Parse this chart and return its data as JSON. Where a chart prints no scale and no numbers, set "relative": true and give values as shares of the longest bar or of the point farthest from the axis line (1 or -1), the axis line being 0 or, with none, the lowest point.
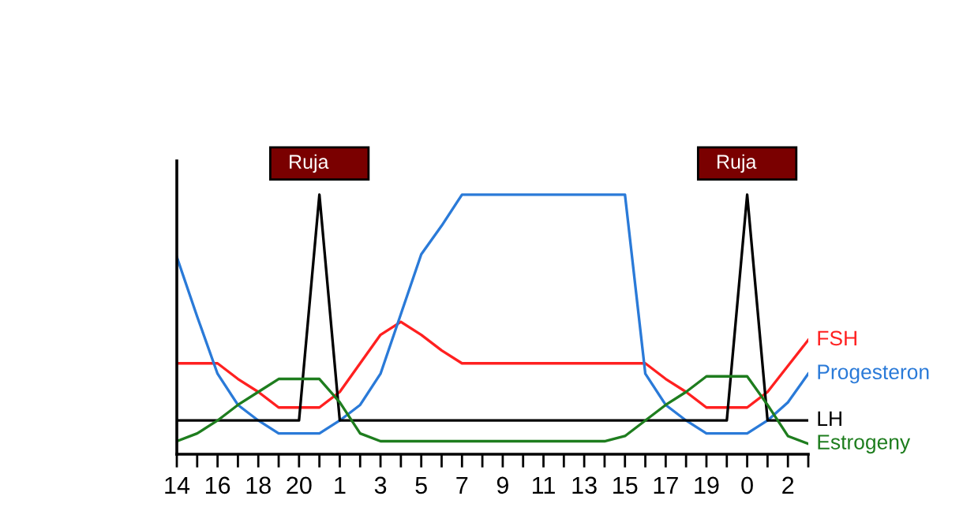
{
  "chart_data": {
    "type": "line",
    "relative": true,
    "legend": false,
    "grid": false,
    "marker": "none",
    "line_style": "solid",
    "categories": [
      "14",
      null,
      "16",
      null,
      "18",
      null,
      "20",
      null,
      "1",
      null,
      "3",
      null,
      "5",
      null,
      "7",
      null,
      "9",
      null,
      "11",
      null,
      "13",
      null,
      "15",
      null,
      "17",
      null,
      "19",
      null,
      "0",
      null,
      "2",
      null
    ],
    "annotations": [
      "Ruja",
      "Ruja"
    ],
    "series": [
      {
        "name": "FSH",
        "color": "#ff2020",
        "values": [
          0.35,
          0.35,
          0.35,
          0.29,
          0.24,
          0.18,
          0.18,
          0.18,
          0.24,
          0.35,
          0.46,
          0.51,
          0.46,
          0.4,
          0.35,
          0.35,
          0.35,
          0.35,
          0.35,
          0.35,
          0.35,
          0.35,
          0.35,
          0.35,
          0.29,
          0.24,
          0.18,
          0.18,
          0.18,
          0.24,
          0.34,
          0.44
        ]
      },
      {
        "name": "Progesteron",
        "color": "#2a7ad8",
        "values": [
          0.76,
          0.53,
          0.31,
          0.19,
          0.13,
          0.08,
          0.08,
          0.08,
          0.13,
          0.19,
          0.31,
          0.54,
          0.77,
          0.88,
          1.0,
          1.0,
          1.0,
          1.0,
          1.0,
          1.0,
          1.0,
          1.0,
          1.0,
          0.31,
          0.19,
          0.13,
          0.08,
          0.08,
          0.08,
          0.13,
          0.2,
          0.31
        ]
      },
      {
        "name": "LH",
        "color": "#000000",
        "values": [
          0.13,
          0.13,
          0.13,
          0.13,
          0.13,
          0.13,
          0.13,
          1.0,
          0.13,
          0.13,
          0.13,
          0.13,
          0.13,
          0.13,
          0.13,
          0.13,
          0.13,
          0.13,
          0.13,
          0.13,
          0.13,
          0.13,
          0.13,
          0.13,
          0.13,
          0.13,
          0.13,
          0.13,
          1.0,
          0.13,
          0.13,
          0.13
        ]
      },
      {
        "name": "Estrogeny",
        "color": "#1e7d1e",
        "values": [
          0.05,
          0.08,
          0.13,
          0.19,
          0.24,
          0.29,
          0.29,
          0.29,
          0.2,
          0.08,
          0.05,
          0.05,
          0.05,
          0.05,
          0.05,
          0.05,
          0.05,
          0.05,
          0.05,
          0.05,
          0.05,
          0.05,
          0.07,
          0.13,
          0.19,
          0.24,
          0.3,
          0.3,
          0.3,
          0.19,
          0.07,
          0.04
        ]
      }
    ]
  }
}
